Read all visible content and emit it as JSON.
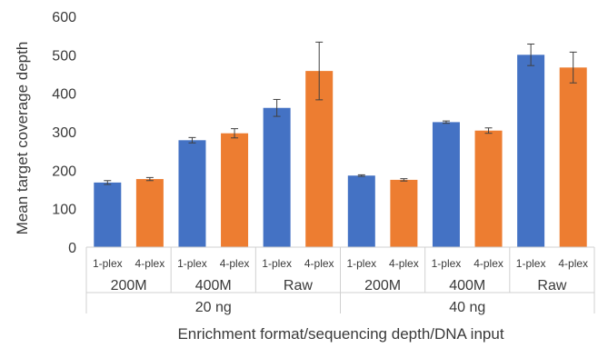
{
  "chart_data": {
    "type": "bar",
    "title": "",
    "ylabel": "Mean target coverage depth",
    "xlabel": "Enrichment format/sequencing depth/DNA input",
    "ylim": [
      0,
      600
    ],
    "yticks": [
      0,
      100,
      200,
      300,
      400,
      500,
      600
    ],
    "grid": false,
    "legend": "none",
    "bars": [
      {
        "label": "1-plex",
        "depth": "200M",
        "input": "20 ng",
        "value": 168,
        "error": 5,
        "color": "#4472c4"
      },
      {
        "label": "4-plex",
        "depth": "200M",
        "input": "20 ng",
        "value": 177,
        "error": 4,
        "color": "#ed7d31"
      },
      {
        "label": "1-plex",
        "depth": "400M",
        "input": "20 ng",
        "value": 278,
        "error": 7,
        "color": "#4472c4"
      },
      {
        "label": "4-plex",
        "depth": "400M",
        "input": "20 ng",
        "value": 296,
        "error": 12,
        "color": "#ed7d31"
      },
      {
        "label": "1-plex",
        "depth": "Raw",
        "input": "20 ng",
        "value": 362,
        "error": 22,
        "color": "#4472c4"
      },
      {
        "label": "4-plex",
        "depth": "Raw",
        "input": "20 ng",
        "value": 458,
        "error": 75,
        "color": "#ed7d31"
      },
      {
        "label": "1-plex",
        "depth": "200M",
        "input": "40 ng",
        "value": 186,
        "error": 2,
        "color": "#4472c4"
      },
      {
        "label": "4-plex",
        "depth": "200M",
        "input": "40 ng",
        "value": 175,
        "error": 3,
        "color": "#ed7d31"
      },
      {
        "label": "1-plex",
        "depth": "400M",
        "input": "40 ng",
        "value": 325,
        "error": 3,
        "color": "#4472c4"
      },
      {
        "label": "4-plex",
        "depth": "400M",
        "input": "40 ng",
        "value": 303,
        "error": 7,
        "color": "#ed7d31"
      },
      {
        "label": "1-plex",
        "depth": "Raw",
        "input": "40 ng",
        "value": 500,
        "error": 28,
        "color": "#4472c4"
      },
      {
        "label": "4-plex",
        "depth": "Raw",
        "input": "40 ng",
        "value": 467,
        "error": 40,
        "color": "#ed7d31"
      }
    ],
    "depth_groups": [
      "200M",
      "400M",
      "Raw",
      "200M",
      "400M",
      "Raw"
    ],
    "input_groups": [
      "20 ng",
      "40 ng"
    ]
  }
}
